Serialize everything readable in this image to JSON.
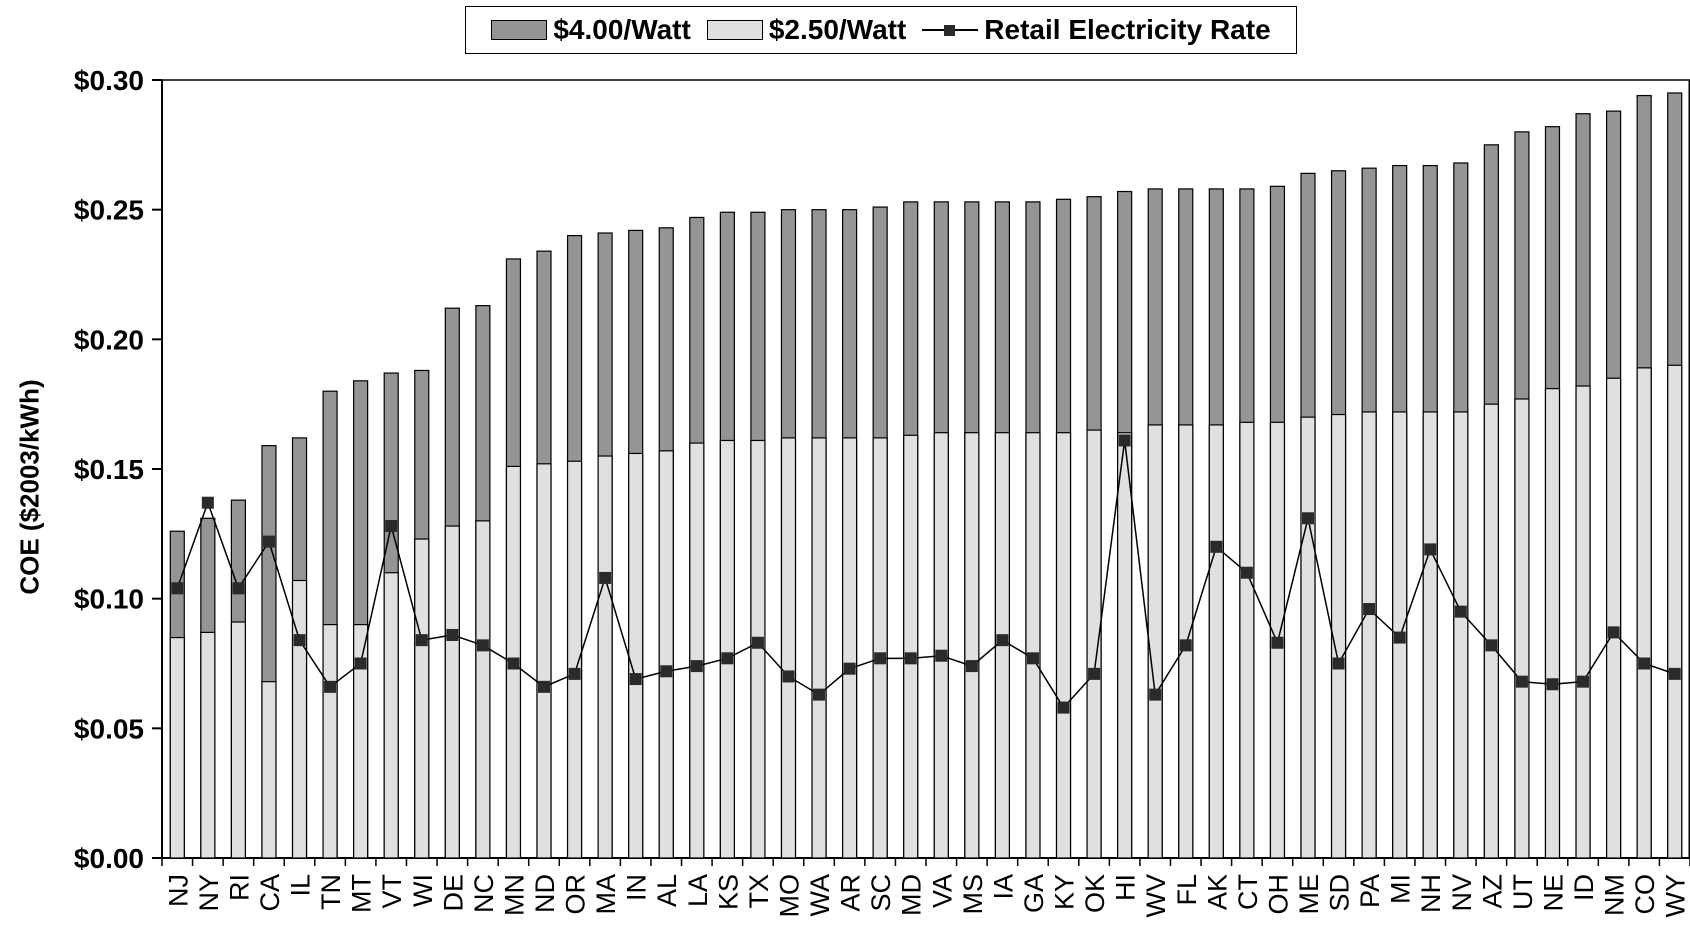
{
  "legend": {
    "high_label": "$4.00/Watt",
    "low_label": "$2.50/Watt",
    "line_label": "Retail Electricity Rate"
  },
  "colors": {
    "high": "#959595",
    "low": "#e0e0e0",
    "line": "#000000",
    "marker": "#2a2a2a"
  },
  "chart_data": {
    "type": "bar",
    "stacked_overlay": true,
    "ylabel": "COE ($2003/kWh)",
    "xlabel": "",
    "ylim": [
      0,
      0.3
    ],
    "yticks": [
      "$0.00",
      "$0.05",
      "$0.10",
      "$0.15",
      "$0.20",
      "$0.25",
      "$0.30"
    ],
    "categories": [
      "NJ",
      "NY",
      "RI",
      "CA",
      "IL",
      "TN",
      "MT",
      "VT",
      "WI",
      "DE",
      "NC",
      "MN",
      "ND",
      "OR",
      "MA",
      "IN",
      "AL",
      "LA",
      "KS",
      "TX",
      "MO",
      "WA",
      "AR",
      "SC",
      "MD",
      "VA",
      "MS",
      "IA",
      "GA",
      "KY",
      "OK",
      "HI",
      "WV",
      "FL",
      "AK",
      "CT",
      "OH",
      "ME",
      "SD",
      "PA",
      "MI",
      "NH",
      "NV",
      "AZ",
      "UT",
      "NE",
      "ID",
      "NM",
      "CO",
      "WY"
    ],
    "series": [
      {
        "name": "$4.00/Watt",
        "type": "bar",
        "values": [
          0.126,
          0.131,
          0.138,
          0.159,
          0.162,
          0.18,
          0.184,
          0.187,
          0.188,
          0.212,
          0.213,
          0.231,
          0.234,
          0.24,
          0.241,
          0.242,
          0.243,
          0.247,
          0.249,
          0.249,
          0.25,
          0.25,
          0.25,
          0.251,
          0.253,
          0.253,
          0.253,
          0.253,
          0.253,
          0.254,
          0.255,
          0.257,
          0.258,
          0.258,
          0.258,
          0.258,
          0.259,
          0.264,
          0.265,
          0.266,
          0.267,
          0.267,
          0.268,
          0.275,
          0.28,
          0.282,
          0.287,
          0.288,
          0.294,
          0.295
        ]
      },
      {
        "name": "$2.50/Watt",
        "type": "bar",
        "values": [
          0.085,
          0.087,
          0.091,
          0.068,
          0.107,
          0.09,
          0.09,
          0.11,
          0.123,
          0.128,
          0.13,
          0.151,
          0.152,
          0.153,
          0.155,
          0.156,
          0.157,
          0.16,
          0.161,
          0.161,
          0.162,
          0.162,
          0.162,
          0.162,
          0.163,
          0.164,
          0.164,
          0.164,
          0.164,
          0.164,
          0.165,
          0.164,
          0.167,
          0.167,
          0.167,
          0.168,
          0.168,
          0.17,
          0.171,
          0.172,
          0.172,
          0.172,
          0.172,
          0.175,
          0.177,
          0.181,
          0.182,
          0.185,
          0.189,
          0.19
        ]
      },
      {
        "name": "Retail Electricity Rate",
        "type": "line",
        "values": [
          0.104,
          0.137,
          0.104,
          0.122,
          0.084,
          0.066,
          0.075,
          0.128,
          0.084,
          0.086,
          0.082,
          0.075,
          0.066,
          0.071,
          0.108,
          0.069,
          0.072,
          0.074,
          0.077,
          0.083,
          0.07,
          0.063,
          0.073,
          0.077,
          0.077,
          0.078,
          0.074,
          0.084,
          0.077,
          0.058,
          0.071,
          0.161,
          0.063,
          0.082,
          0.12,
          0.11,
          0.083,
          0.131,
          0.075,
          0.096,
          0.085,
          0.119,
          0.095,
          0.082,
          0.068,
          0.067,
          0.068,
          0.087,
          0.075,
          0.071
        ]
      }
    ],
    "grid": false,
    "legend_position": "top-center"
  }
}
